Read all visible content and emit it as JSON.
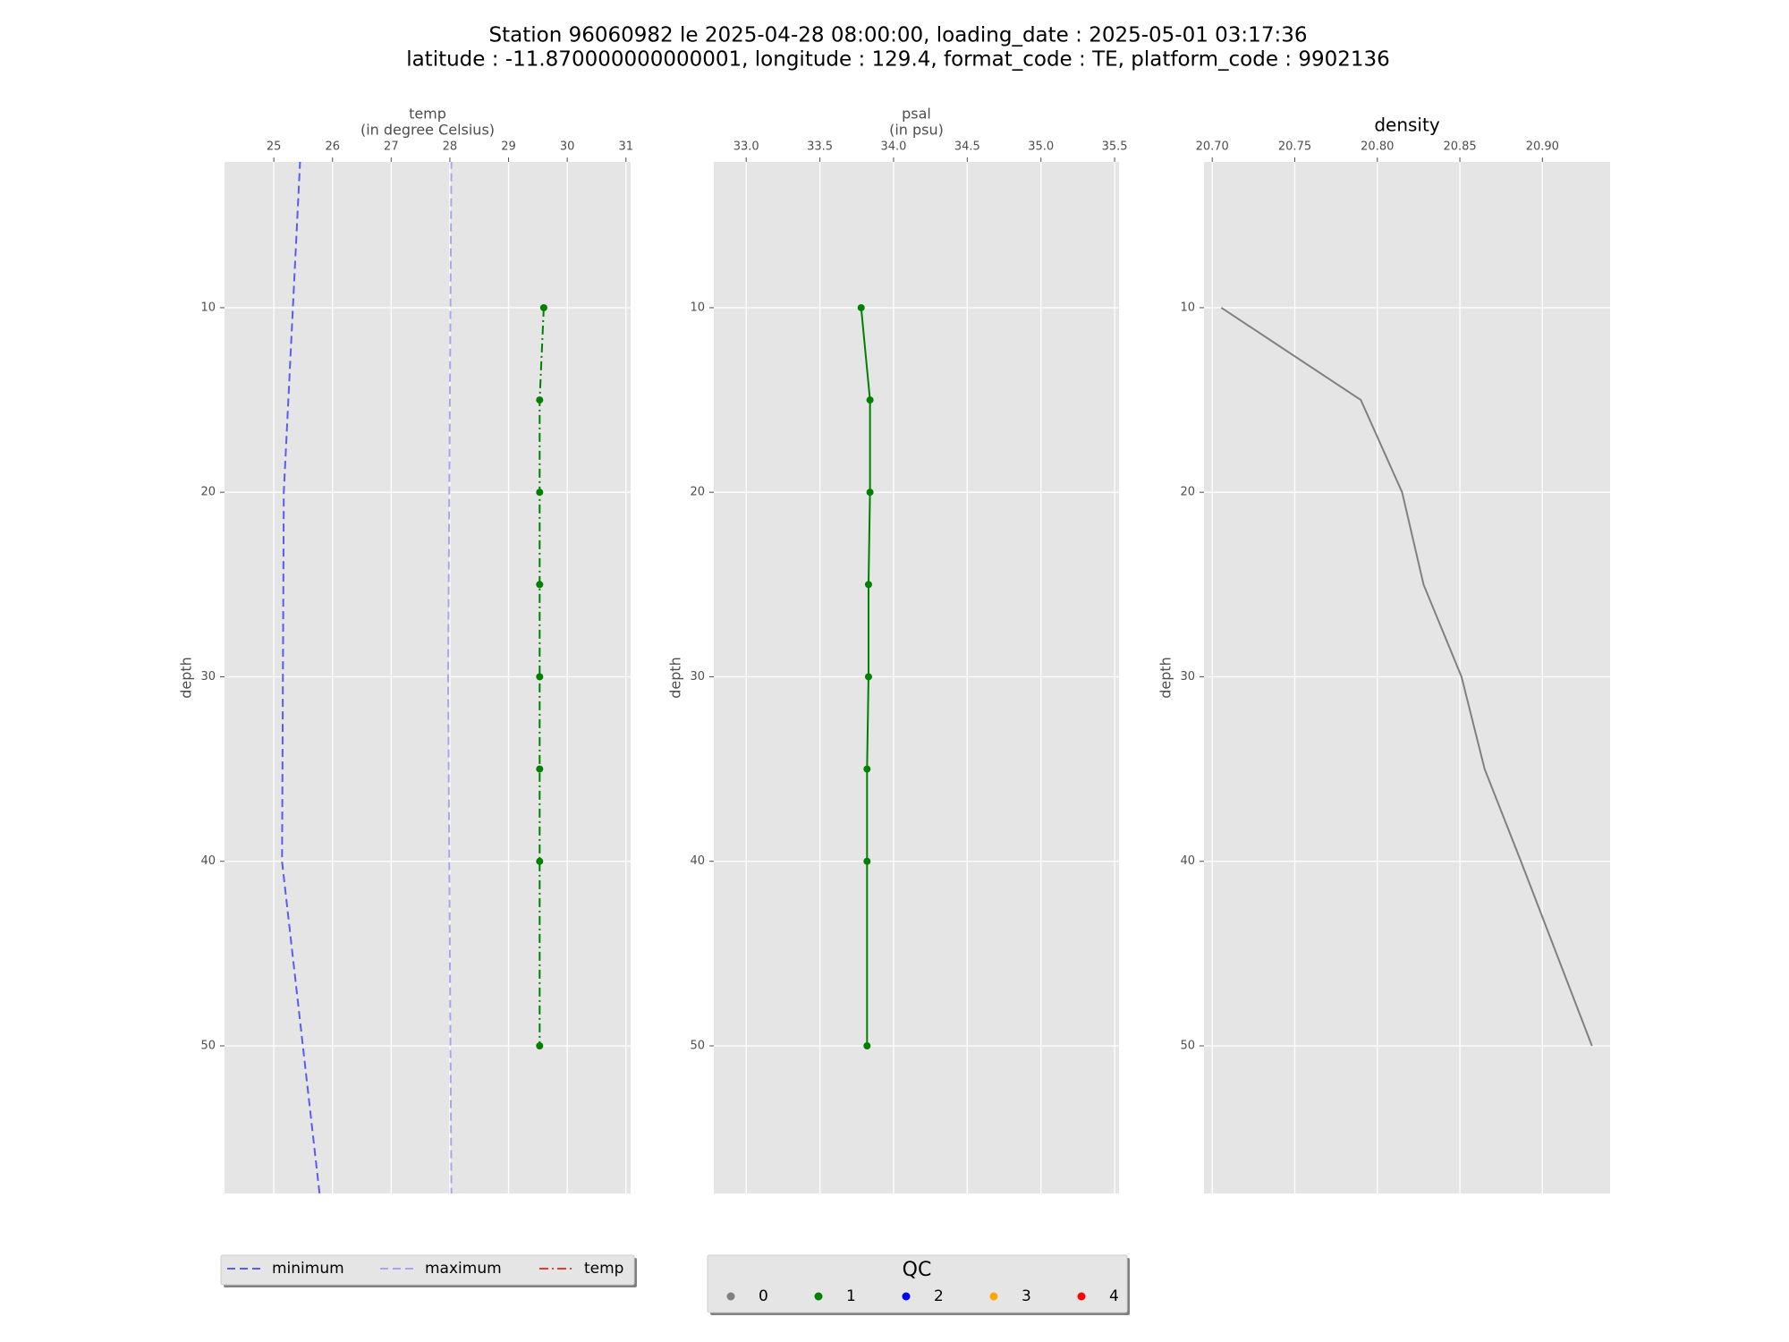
{
  "title": "Station 96060982 le 2025-04-28 08:00:00, loading_date : 2025-05-01 03:17:36",
  "subtitle": "latitude : -11.870000000000001, longitude : 129.4, format_code : TE, platform_code : 9902136",
  "qc_legend": {
    "title": "QC",
    "entries": [
      {
        "label": "0",
        "color": "#808080"
      },
      {
        "label": "1",
        "color": "#008000"
      },
      {
        "label": "2",
        "color": "#0000ff"
      },
      {
        "label": "3",
        "color": "#ffa500"
      },
      {
        "label": "4",
        "color": "#ff0000"
      }
    ]
  },
  "chart_data": [
    {
      "type": "line",
      "xlabel": "temp",
      "xlabel_units": "(in degree Celsius)",
      "ylabel": "depth",
      "xlim": [
        24.16,
        31.08
      ],
      "xticks": [
        25,
        26,
        27,
        28,
        29,
        30,
        31
      ],
      "ylim": [
        58,
        2.1
      ],
      "yticks": [
        10,
        20,
        30,
        40,
        50
      ],
      "grid": true,
      "legend": "below",
      "series": [
        {
          "name": "minimum",
          "color": "#5b5bef",
          "linestyle": "dashed",
          "depth": [
            0,
            20,
            40,
            60
          ],
          "values": [
            25.48,
            25.17,
            25.14,
            25.85
          ]
        },
        {
          "name": "maximum",
          "color": "#a6a6f0",
          "linestyle": "dashed",
          "depth": [
            0,
            30,
            60
          ],
          "values": [
            28.03,
            27.97,
            28.03
          ]
        },
        {
          "name": "temp",
          "color": "#e8392b",
          "line_color": "#008000",
          "linestyle": "dashdot",
          "markers": true,
          "depth": [
            10,
            15,
            20,
            25,
            30,
            35,
            40,
            50
          ],
          "values": [
            29.6,
            29.53,
            29.53,
            29.53,
            29.53,
            29.53,
            29.53,
            29.53
          ],
          "qc": [
            1,
            1,
            1,
            1,
            1,
            1,
            1,
            1
          ]
        }
      ]
    },
    {
      "type": "line",
      "xlabel": "psal",
      "xlabel_units": "(in psu)",
      "ylabel": "depth",
      "xlim": [
        32.78,
        35.53
      ],
      "xticks": [
        {
          "value": 33,
          "label": "33.0"
        },
        33.5,
        {
          "value": 34,
          "label": "34.0"
        },
        34.5,
        {
          "value": 35,
          "label": "35.0"
        },
        35.5
      ],
      "ylim": [
        58,
        2.1
      ],
      "yticks": [
        10,
        20,
        30,
        40,
        50
      ],
      "grid": true,
      "series": [
        {
          "color": "#008000",
          "linestyle": "solid",
          "markers": true,
          "depth": [
            10,
            15,
            20,
            25,
            30,
            35,
            40,
            50
          ],
          "values": [
            33.78,
            33.84,
            33.84,
            33.83,
            33.83,
            33.82,
            33.82,
            33.82
          ],
          "qc": [
            1,
            1,
            1,
            1,
            1,
            1,
            1,
            1
          ]
        }
      ]
    },
    {
      "type": "line",
      "title": "density",
      "ylabel": "depth",
      "xlim": [
        20.695,
        20.941
      ],
      "xticks": [
        {
          "value": 20.7,
          "label": "20.70"
        },
        20.75,
        {
          "value": 20.8,
          "label": "20.80"
        },
        20.85,
        {
          "value": 20.9,
          "label": "20.90"
        }
      ],
      "ylim": [
        58,
        2.1
      ],
      "yticks": [
        10,
        20,
        30,
        40,
        50
      ],
      "grid": true,
      "series": [
        {
          "color": "#808080",
          "linestyle": "solid",
          "depth": [
            10,
            15,
            20,
            25,
            30,
            35,
            40,
            50
          ],
          "values": [
            20.7055,
            20.79,
            20.815,
            20.828,
            20.851,
            20.865,
            20.887,
            20.93
          ]
        }
      ]
    }
  ]
}
